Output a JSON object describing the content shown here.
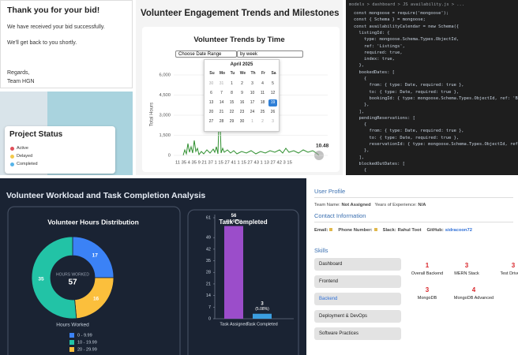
{
  "bid_email": {
    "title": "Thank you for your bid!",
    "lines": [
      "We have received your bid successfully.",
      "We'll get back to you shortly."
    ],
    "signoff": [
      "Regards,",
      "Team HGN"
    ]
  },
  "project_status": {
    "title": "Project Status",
    "legend": [
      {
        "name": "Active",
        "color": "#e0505a"
      },
      {
        "name": "Delayed",
        "color": "#f2c94c"
      },
      {
        "name": "Completed",
        "color": "#56b4e9"
      }
    ]
  },
  "engagement": {
    "title": "Volunteer Engagement Trends and Milestones",
    "chart_title": "Volunteer Trends by Time",
    "date_select": "Choose Date Range",
    "period_select": "by week",
    "calendar": {
      "month": "April 2025",
      "weekdays": [
        "Su",
        "Mo",
        "Tu",
        "We",
        "Th",
        "Fr",
        "Sa"
      ],
      "weeks": [
        [
          "30",
          "31",
          "1",
          "2",
          "3",
          "4",
          "5"
        ],
        [
          "6",
          "7",
          "8",
          "9",
          "10",
          "11",
          "12"
        ],
        [
          "13",
          "14",
          "15",
          "16",
          "17",
          "18",
          "19"
        ],
        [
          "20",
          "21",
          "22",
          "23",
          "24",
          "25",
          "26"
        ],
        [
          "27",
          "28",
          "29",
          "30",
          "1",
          "2",
          "3"
        ]
      ],
      "selected": "19"
    },
    "y_label": "Total Hours",
    "ylim": [
      0,
      6000
    ],
    "yticks": [
      0,
      {
        "value": 1500,
        "label": "1,500"
      },
      {
        "value": 3000,
        "label": "3,000"
      },
      {
        "value": 4500,
        "label": "4,500"
      },
      {
        "value": 6000,
        "label": "6,000"
      }
    ],
    "x_labels": "11 35 4 35 9 21 37 1 15 27 41 1 15 27 43 1 13 27 42 3 15",
    "end_label": "10.48"
  },
  "code_editor": {
    "breadcrumb": "models > dashboard > JS availability.js > ...",
    "lines": [
      "const mongoose = require('mongoose');",
      "const { Schema } = mongoose;",
      "const availabilityCalendar = new Schema({",
      "  listingId: {",
      "    type: mongoose.Schema.Types.ObjectId,",
      "    ref: 'Listings',",
      "    required: true,",
      "    index: true,",
      "  },",
      "  bookedDates: [",
      "    {",
      "      from: { type: Date, required: true },",
      "      to: { type: Date, required: true },",
      "      bookingId: { type: mongoose.Schema.Types.ObjectId, ref: 'B",
      "    },",
      "  ],",
      "  pendingReservations: [",
      "    {",
      "      from: { type: Date, required: true },",
      "      to: { type: Date, required: true },",
      "      reservationId: { type: mongoose.Schema.Types.ObjectId, ref",
      "    },",
      "  ],",
      "  blockedOutDates: [",
      "    {"
    ]
  },
  "workload": {
    "title": "Volunteer Workload and Task Completion Analysis",
    "donut": {
      "type": "pie",
      "title": "Volunteer Hours Distribution",
      "center_label": "HOURS WORKED",
      "center_value": "57",
      "values": [
        17,
        16,
        35
      ],
      "colors": [
        "#3b82f6",
        "#fbbf3c",
        "#22c3a6"
      ],
      "legend_title": "Hours Worked",
      "legend": [
        {
          "name": "0 - 9.99",
          "color": "#3b82f6"
        },
        {
          "name": "10 - 19.99",
          "color": "#22c3a6"
        },
        {
          "name": "20 - 29.99",
          "color": "#fbbf3c"
        }
      ]
    },
    "tasks": {
      "type": "bar",
      "title": "Task Completed",
      "categories": [
        "Task Assigned",
        "Task Completed"
      ],
      "values": [
        56,
        3
      ],
      "percent_labels": [
        "(94.92%)",
        "(5.08%)"
      ],
      "colors": [
        "#9b4dca",
        "#3b9ee0"
      ],
      "ylim": [
        0,
        61
      ],
      "yticks": [
        0,
        7,
        14,
        21,
        28,
        35,
        42,
        49,
        61
      ]
    }
  },
  "profile": {
    "title": "User Profile",
    "team": {
      "label": "Team Name:",
      "value": "Not Assigned"
    },
    "experience": {
      "label": "Years of Experience:",
      "value": "N/A"
    },
    "contact_title": "Contact Information",
    "contact": [
      {
        "label": "Email:"
      },
      {
        "label": "Phone Number:"
      },
      {
        "label": "Slack:",
        "value": "Rahul Toot"
      },
      {
        "label": "GitHub:",
        "value": "sidracoon72"
      }
    ],
    "skills_title": "Skills",
    "skill_tabs": [
      "Dashboard",
      "Frontend",
      "Backend",
      "Deployment & DevOps",
      "Software Practices"
    ],
    "active_tab": "Backend",
    "skills": [
      {
        "score": "1",
        "name": "Overall Backend"
      },
      {
        "score": "3",
        "name": "MERN Stack"
      },
      {
        "score": "3",
        "name": "Test Driven D"
      },
      {
        "score": "3",
        "name": "MongoDB"
      },
      {
        "score": "4",
        "name": "MongoDB Advanced"
      }
    ]
  }
}
